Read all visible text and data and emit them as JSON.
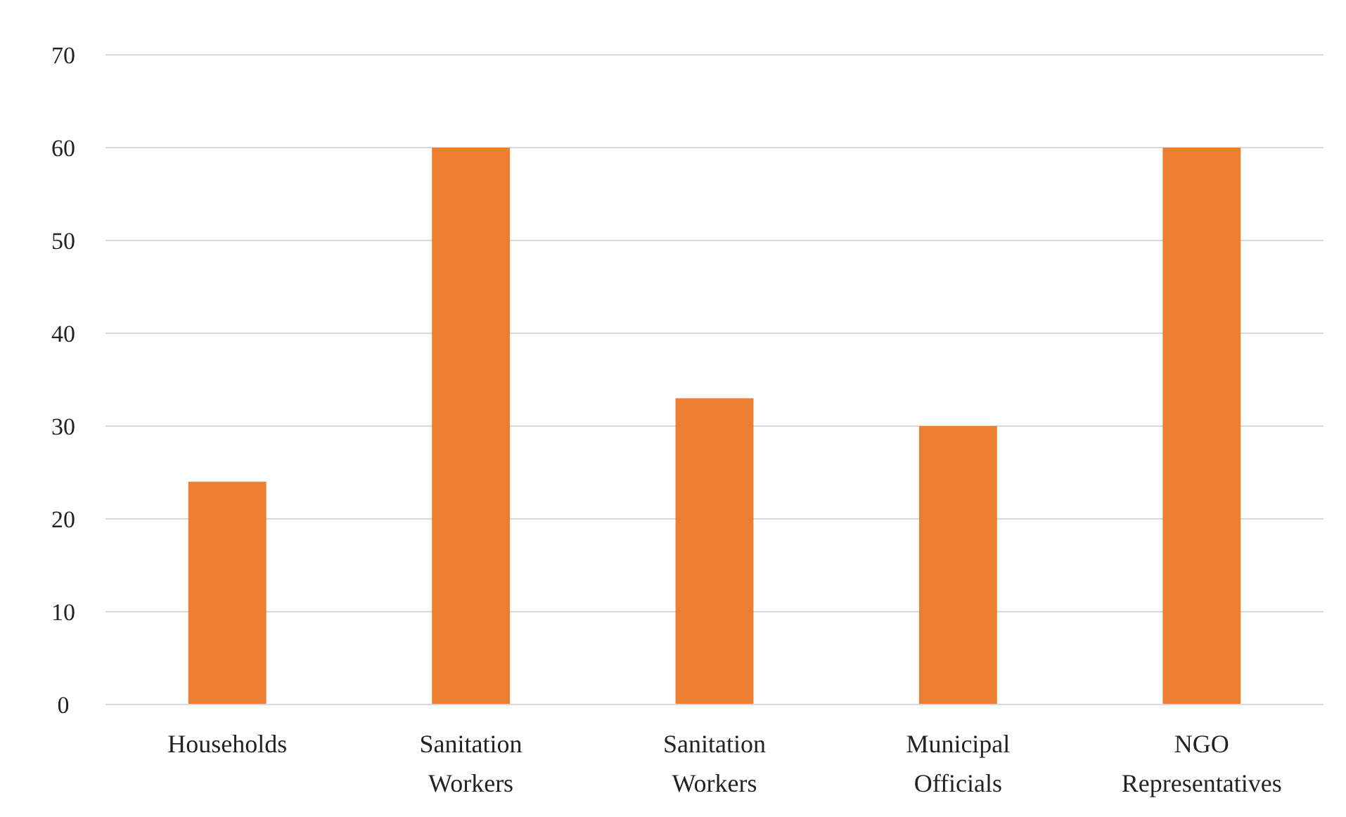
{
  "chart_data": {
    "type": "bar",
    "categories": [
      "Households",
      "Sanitation Workers",
      "Sanitation Workers",
      "Municipal Officials",
      "NGO Representatives"
    ],
    "values": [
      24,
      60,
      33,
      30,
      60
    ],
    "color": "#ed7d31",
    "ylim": [
      0,
      70
    ],
    "yticks": [
      0,
      10,
      20,
      30,
      40,
      50,
      60,
      70
    ],
    "grid": "y"
  }
}
